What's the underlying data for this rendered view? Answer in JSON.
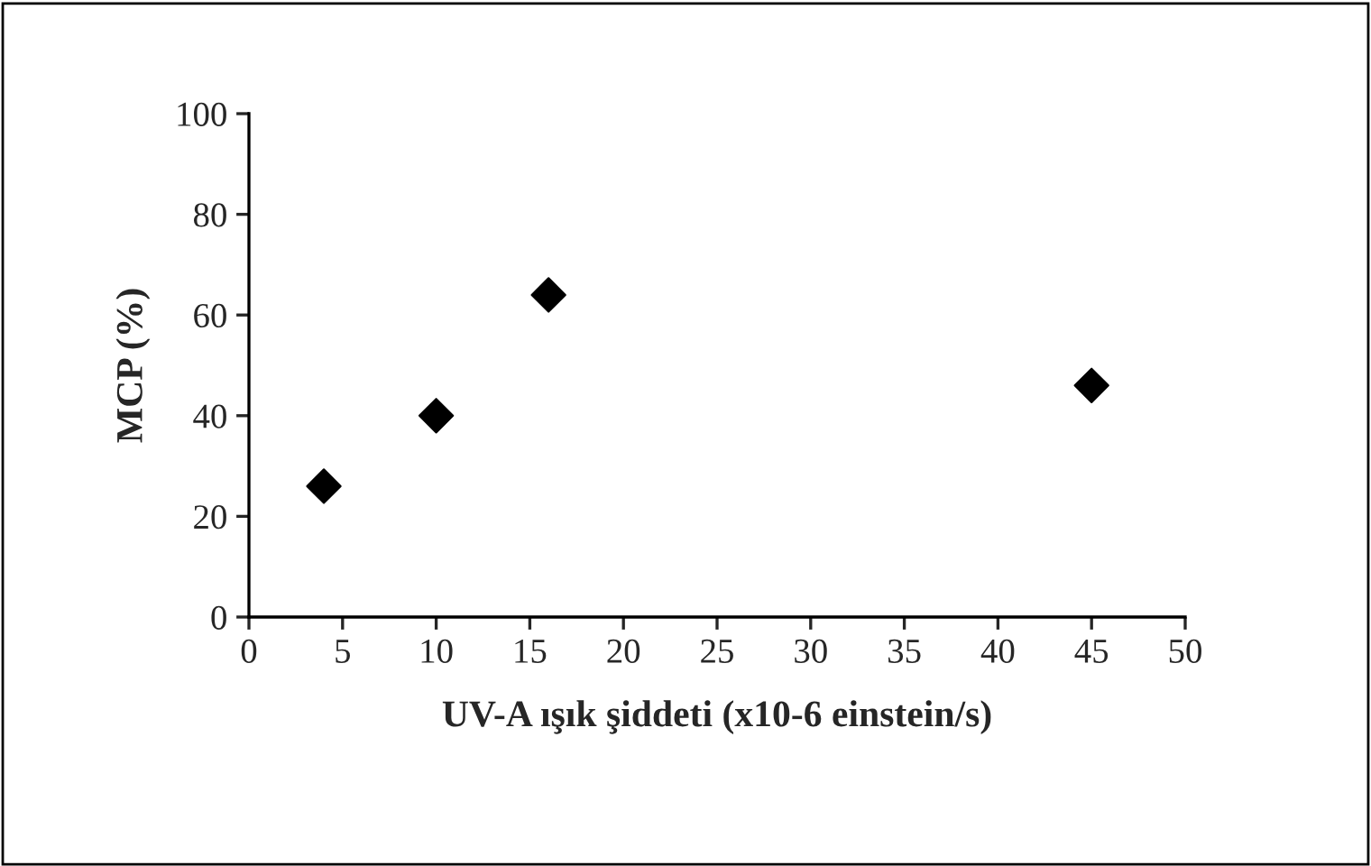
{
  "chart_data": {
    "type": "scatter",
    "xlabel": "UV-A ışık şiddeti (x10-6 einstein/s)",
    "ylabel": "MCP (%)",
    "x": [
      4,
      10,
      16,
      45
    ],
    "values": [
      26,
      40,
      64,
      46
    ],
    "color": "#000000",
    "marker": "diamond",
    "xlim": [
      0,
      50
    ],
    "xticks": [
      0,
      5,
      10,
      15,
      20,
      25,
      30,
      35,
      40,
      45,
      50
    ],
    "ylim": [
      0,
      100
    ],
    "yticks": [
      0,
      20,
      40,
      60,
      80,
      100
    ],
    "grid": false,
    "legend": false
  }
}
